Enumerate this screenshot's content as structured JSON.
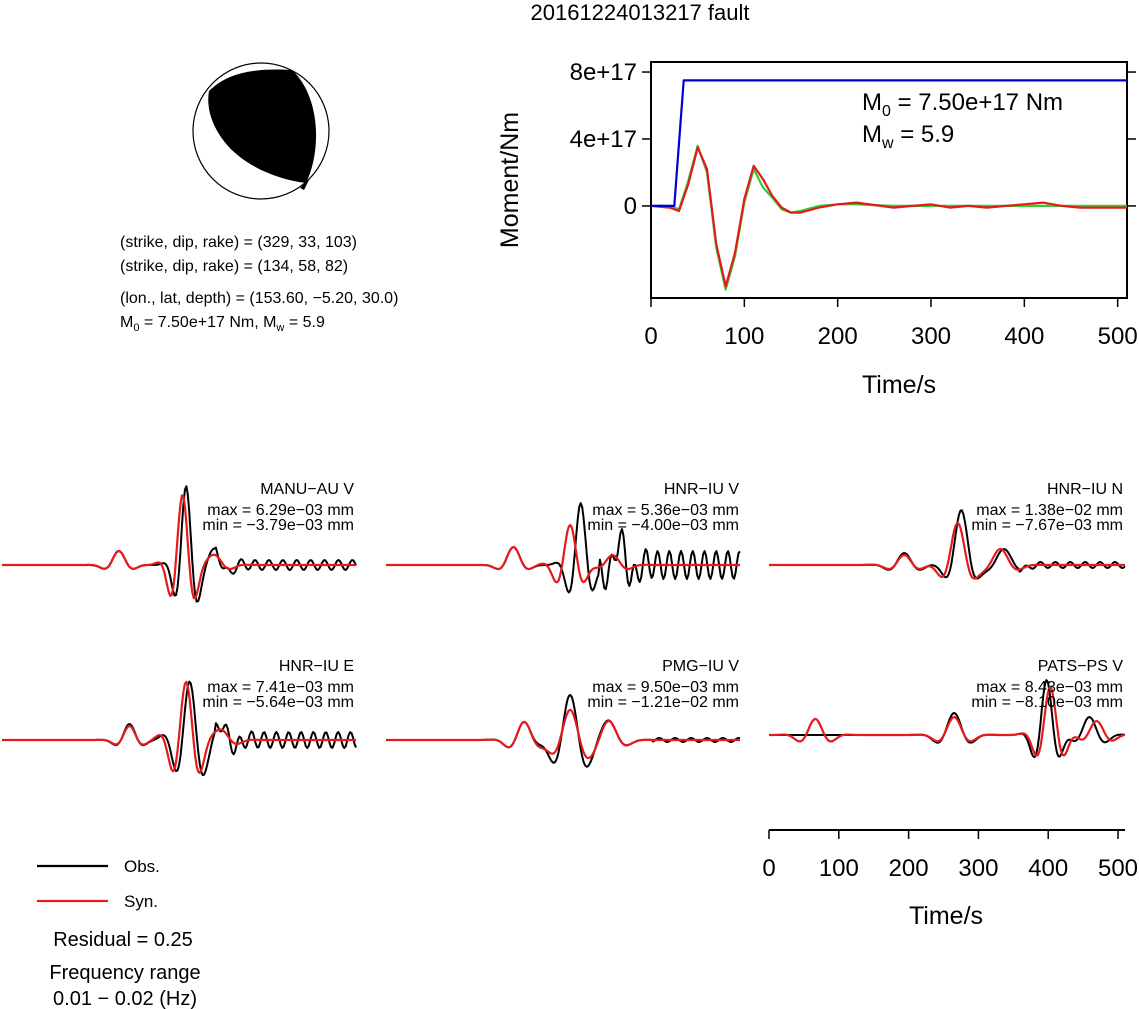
{
  "title": "20161224013217 fault",
  "mechanism": {
    "line1": "(strike, dip, rake) = (329, 33, 103)",
    "line2": "(strike, dip, rake) = (134, 58, 82)",
    "line3": "(lon., lat, depth) = (153.60, −5.20, 30.0)",
    "line4_m0": "M",
    "line4_m0_sub": "0",
    "line4_m0_rest": " = 7.50e+17 Nm, M",
    "line4_mw_sub": "w",
    "line4_mw_rest": " = 5.9"
  },
  "moment_box": {
    "m0_prefix": "M",
    "m0_sub": "0",
    "m0_value": " = 7.50e+17 Nm",
    "mw_prefix": "M",
    "mw_sub": "w",
    "mw_value": " = 5.9"
  },
  "stations": [
    {
      "name": "MANU−AU V",
      "max": "max = 6.29e−03 mm",
      "min": "min = −3.79e−03 mm"
    },
    {
      "name": "HNR−IU V",
      "max": "max = 5.36e−03 mm",
      "min": "min = −4.00e−03 mm"
    },
    {
      "name": "HNR−IU N",
      "max": "max = 1.38e−02 mm",
      "min": "min = −7.67e−03 mm"
    },
    {
      "name": "HNR−IU E",
      "max": "max = 7.41e−03 mm",
      "min": "min = −5.64e−03 mm"
    },
    {
      "name": "PMG−IU V",
      "max": "max = 9.50e−03 mm",
      "min": "min = −1.21e−02 mm"
    },
    {
      "name": "PATS−PS V",
      "max": "max = 8.43e−03 mm",
      "min": "min = −8.10e−03 mm"
    }
  ],
  "legend": {
    "obs": "Obs.",
    "syn": "Syn."
  },
  "residual": "Residual = 0.25",
  "freq_label": "Frequency range",
  "freq_range": "0.01 − 0.02 (Hz)",
  "colors": {
    "obs": "#000000",
    "syn": "#e41a1c",
    "moment": "#0000cc",
    "green": "#33cc33"
  },
  "chart_data": [
    {
      "type": "line",
      "ylabel": "Moment/Nm",
      "xlabel": "Time/s",
      "xlim": [
        0,
        510
      ],
      "ylim": [
        -5.5e+17,
        8.6e+17
      ],
      "xticks": [
        0,
        100,
        200,
        300,
        400,
        500
      ],
      "xtick_labels": [
        "0",
        "100",
        "200",
        "300",
        "400",
        "500"
      ],
      "yticks": [
        0,
        4e+17,
        8e+17
      ],
      "ytick_labels": [
        "0",
        "4e+17",
        "8e+17"
      ],
      "series": [
        {
          "name": "moment",
          "color": "#0000cc",
          "x": [
            0,
            25,
            35,
            510
          ],
          "y": [
            0,
            0,
            7.5e+17,
            7.5e+17
          ]
        },
        {
          "name": "green",
          "color": "#33cc33",
          "x": [
            0,
            20,
            30,
            40,
            50,
            60,
            70,
            80,
            90,
            100,
            110,
            120,
            130,
            140,
            150,
            160,
            180,
            200,
            220,
            240,
            260,
            280,
            300,
            320,
            340,
            360,
            380,
            400,
            420,
            440,
            460,
            480,
            510
          ],
          "y": [
            0,
            0,
            -2e+16,
            1.5e+17,
            3.6e+17,
            2e+17,
            -2.5e+17,
            -5e+17,
            -3e+17,
            2e+16,
            2.2e+17,
            1.1e+17,
            5e+16,
            -2e+16,
            -4e+16,
            -3e+16,
            0,
            1e+16,
            1e+16,
            5000000000000000.0,
            0,
            0,
            0,
            0,
            0,
            0,
            0,
            0,
            0,
            0,
            0,
            0,
            0
          ]
        },
        {
          "name": "red",
          "color": "#e41a1c",
          "x": [
            0,
            20,
            30,
            40,
            50,
            60,
            70,
            80,
            90,
            100,
            110,
            120,
            130,
            140,
            150,
            160,
            180,
            200,
            220,
            240,
            260,
            280,
            300,
            320,
            340,
            360,
            380,
            400,
            420,
            440,
            460,
            480,
            510
          ],
          "y": [
            0,
            -1e+16,
            -3e+16,
            1.3e+17,
            3.5e+17,
            2.2e+17,
            -2.3e+17,
            -4.8e+17,
            -2.8e+17,
            4e+16,
            2.4e+17,
            1.6e+17,
            6e+16,
            -1e+16,
            -4e+16,
            -4e+16,
            -1e+16,
            1e+16,
            2e+16,
            5000000000000000.0,
            -1e+16,
            0,
            1e+16,
            -1e+16,
            0,
            -1e+16,
            0,
            1e+16,
            2e+16,
            0,
            -1e+16,
            -1e+16,
            -1e+16
          ]
        }
      ]
    },
    {
      "type": "line",
      "xlabel": "Time/s",
      "xlim": [
        0,
        510
      ],
      "xticks": [
        0,
        100,
        200,
        300,
        400,
        500
      ],
      "xtick_labels": [
        "0",
        "100",
        "200",
        "300",
        "400",
        "500"
      ]
    }
  ]
}
